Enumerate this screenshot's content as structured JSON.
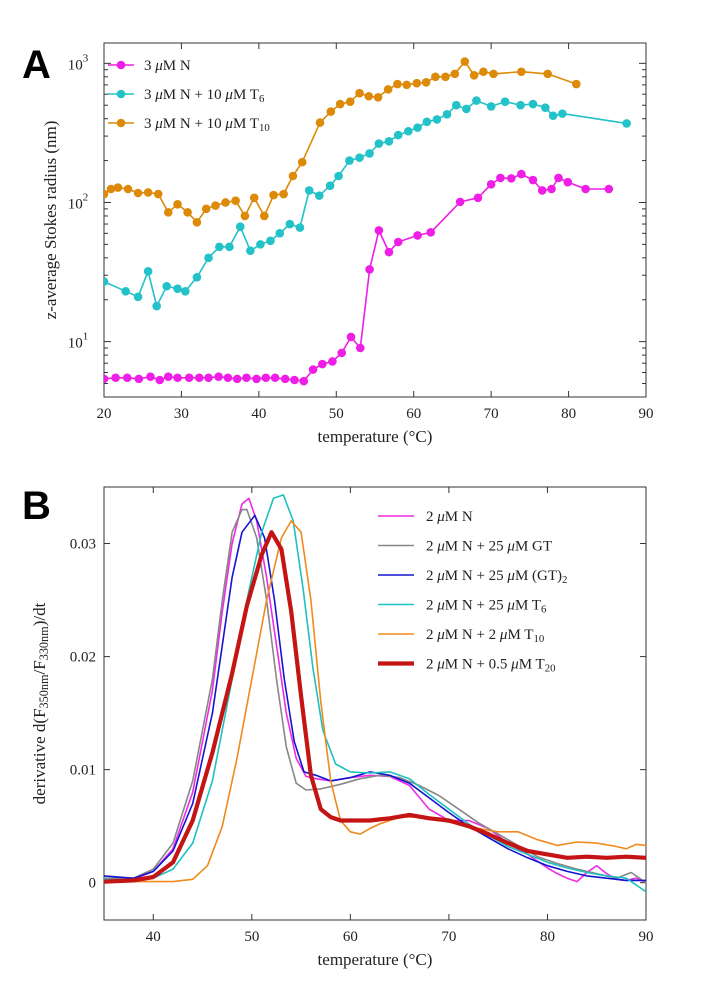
{
  "chart_data": [
    {
      "panel": "A",
      "type": "line",
      "xlabel": "temperature (°C)",
      "ylabel": "z-average Stokes radius (nm)",
      "xlim": [
        20,
        90
      ],
      "ylim": [
        4,
        1400
      ],
      "yscale": "log",
      "grid": false,
      "legend_position": "top-left",
      "xticks": [
        "20",
        "30",
        "40",
        "50",
        "60",
        "70",
        "80",
        "90"
      ],
      "yticks": [
        {
          "value": 10,
          "base": "10",
          "exp": "1"
        },
        {
          "value": 100,
          "base": "10",
          "exp": "2"
        },
        {
          "value": 1000,
          "base": "10",
          "exp": "3"
        }
      ],
      "series": [
        {
          "name": "3 μM N",
          "legend_parts": [
            {
              "t": "3 "
            },
            {
              "t": "μ",
              "it": true
            },
            {
              "t": "M N"
            }
          ],
          "color": "#ee1ee6",
          "x": [
            20,
            21.5,
            23,
            24.5,
            26,
            27.2,
            28.3,
            29.5,
            31,
            32.3,
            33.5,
            34.8,
            36,
            37.2,
            38.4,
            39.7,
            40.9,
            42.1,
            43.4,
            44.6,
            45.8,
            47,
            48.2,
            49.5,
            50.7,
            51.9,
            53.1,
            54.3,
            55.5,
            56.8,
            58,
            60.5,
            62.2,
            66,
            68.3,
            70,
            71.2,
            72.6,
            73.9,
            75.4,
            76.6,
            77.8,
            78.7,
            79.9,
            82.2,
            85.2
          ],
          "y": [
            5.4,
            5.5,
            5.5,
            5.4,
            5.6,
            5.3,
            5.6,
            5.5,
            5.5,
            5.5,
            5.5,
            5.6,
            5.5,
            5.4,
            5.5,
            5.4,
            5.5,
            5.5,
            5.4,
            5.3,
            5.2,
            6.3,
            6.9,
            7.2,
            8.3,
            10.8,
            9,
            33,
            63,
            44,
            52,
            58,
            61,
            101,
            108,
            135,
            150,
            149,
            160,
            145,
            122,
            125,
            150,
            140,
            125,
            125
          ]
        },
        {
          "name": "3 μM N + 10 μM T6",
          "legend_parts": [
            {
              "t": "3 "
            },
            {
              "t": "μ",
              "it": true
            },
            {
              "t": "M N + 10 "
            },
            {
              "t": "μ",
              "it": true
            },
            {
              "t": "M T"
            },
            {
              "t": "6",
              "sub": true
            }
          ],
          "color": "#22c2c8",
          "x": [
            20,
            22.8,
            24.4,
            25.7,
            26.8,
            28.1,
            29.5,
            30.5,
            32,
            33.5,
            34.9,
            36.2,
            37.6,
            38.9,
            40.2,
            41.5,
            42.7,
            44,
            45.3,
            46.5,
            47.8,
            49.2,
            50.3,
            51.7,
            53,
            54.3,
            55.5,
            56.8,
            58,
            59.3,
            60.5,
            61.7,
            63,
            64.3,
            65.5,
            66.8,
            68.1,
            70,
            71.8,
            73.8,
            75.4,
            77,
            78,
            79.2,
            87.5
          ],
          "y": [
            27,
            23,
            21,
            32,
            18,
            25,
            24,
            23,
            29,
            40,
            48,
            48,
            67,
            45,
            50,
            53,
            60,
            70,
            66,
            122,
            112,
            132,
            155,
            200,
            210,
            225,
            265,
            275,
            305,
            325,
            345,
            380,
            395,
            430,
            500,
            470,
            540,
            490,
            530,
            500,
            510,
            480,
            420,
            435,
            370
          ]
        },
        {
          "name": "3 μM N + 10 μM T10",
          "legend_parts": [
            {
              "t": "3 "
            },
            {
              "t": "μ",
              "it": true
            },
            {
              "t": "M N + 10 "
            },
            {
              "t": "μ",
              "it": true
            },
            {
              "t": "M T"
            },
            {
              "t": "10",
              "sub": true
            }
          ],
          "color": "#dc8a08",
          "x": [
            20,
            20.9,
            21.8,
            23.1,
            24.4,
            25.7,
            27,
            28.3,
            29.5,
            30.8,
            32,
            33.2,
            34.4,
            35.7,
            37,
            38.2,
            39.4,
            40.7,
            41.9,
            43.2,
            44.4,
            45.6,
            47.9,
            49.3,
            50.5,
            51.8,
            53,
            54.2,
            55.4,
            56.7,
            57.9,
            59.1,
            60.4,
            61.6,
            62.8,
            64.1,
            65.3,
            66.6,
            67.8,
            69,
            70.3,
            73.9,
            77.3,
            81
          ],
          "y": [
            115,
            125,
            128,
            125,
            117,
            118,
            115,
            85,
            97,
            85,
            72,
            90,
            95,
            100,
            103,
            80,
            108,
            80,
            113,
            115,
            155,
            195,
            375,
            450,
            510,
            530,
            610,
            580,
            570,
            650,
            710,
            700,
            720,
            730,
            800,
            800,
            840,
            1030,
            820,
            870,
            840,
            870,
            840,
            710
          ]
        }
      ]
    },
    {
      "panel": "B",
      "type": "line",
      "xlabel": "temperature (°C)",
      "ylabel_parts": [
        {
          "t": "derivative d(F"
        },
        {
          "t": "350nm",
          "sub": true
        },
        {
          "t": "/F"
        },
        {
          "t": "330nm",
          "sub": true
        },
        {
          "t": ")/dt"
        }
      ],
      "xlim": [
        35,
        90
      ],
      "ylim": [
        -0.0033,
        0.035
      ],
      "grid": false,
      "legend_position": "top-right",
      "xticks": [
        "40",
        "50",
        "60",
        "70",
        "80",
        "90"
      ],
      "yticks": [
        "0",
        "0.01",
        "0.02",
        "0.03"
      ],
      "series": [
        {
          "name": "2 μM N",
          "legend_parts": [
            {
              "t": "2 "
            },
            {
              "t": "μ",
              "it": true
            },
            {
              "t": "M N"
            }
          ],
          "color": "#ee2be6",
          "width": 1.6,
          "x": [
            35,
            38,
            40,
            42,
            44,
            46,
            47,
            48,
            49,
            49.7,
            50.5,
            51.5,
            52.5,
            53.5,
            54.5,
            55.5,
            56.5,
            58,
            60,
            62,
            64,
            66,
            68,
            70,
            72,
            74,
            76,
            78,
            80,
            81,
            82,
            83,
            84,
            85,
            86,
            87,
            88,
            89,
            90
          ],
          "y": [
            0.0004,
            0.0003,
            0.001,
            0.003,
            0.008,
            0.017,
            0.024,
            0.03,
            0.0335,
            0.034,
            0.032,
            0.027,
            0.021,
            0.015,
            0.011,
            0.0094,
            0.0092,
            0.009,
            0.0093,
            0.0095,
            0.0094,
            0.0086,
            0.0065,
            0.0055,
            0.0055,
            0.0048,
            0.0035,
            0.0025,
            0.0013,
            0.0008,
            0.0004,
            0.0001,
            0.0009,
            0.0015,
            0.0008,
            0.0003,
            0.0002,
            0.0004,
            0.0
          ]
        },
        {
          "name": "2 μM N + 25 μM GT",
          "legend_parts": [
            {
              "t": "2 "
            },
            {
              "t": "μ",
              "it": true
            },
            {
              "t": "M N + 25 "
            },
            {
              "t": "μ",
              "it": true
            },
            {
              "t": "M GT"
            }
          ],
          "color": "#888888",
          "width": 1.6,
          "x": [
            35,
            38,
            40,
            42,
            44,
            46,
            47,
            48,
            49,
            49.5,
            50.5,
            51.5,
            52.5,
            53.5,
            54.5,
            55.5,
            57,
            59,
            61,
            63,
            65,
            67,
            69,
            71,
            73,
            75,
            77,
            79,
            81,
            83,
            85,
            87,
            88.5,
            90
          ],
          "y": [
            0.0004,
            0.0004,
            0.0012,
            0.0035,
            0.009,
            0.018,
            0.025,
            0.031,
            0.033,
            0.033,
            0.0305,
            0.025,
            0.018,
            0.012,
            0.0088,
            0.0082,
            0.0083,
            0.0087,
            0.0092,
            0.0095,
            0.0093,
            0.0086,
            0.0077,
            0.0065,
            0.0053,
            0.0043,
            0.0033,
            0.0023,
            0.0017,
            0.0012,
            0.0008,
            0.0004,
            0.0009,
            0.0
          ]
        },
        {
          "name": "2 μM N + 25 μM (GT)2",
          "legend_parts": [
            {
              "t": "2 "
            },
            {
              "t": "μ",
              "it": true
            },
            {
              "t": "M N + 25 "
            },
            {
              "t": "μ",
              "it": true
            },
            {
              "t": "M (GT)"
            },
            {
              "t": "2",
              "sub": true
            }
          ],
          "color": "#1414d2",
          "width": 1.6,
          "x": [
            35,
            38,
            40,
            42,
            44,
            46,
            47,
            48,
            49,
            50.3,
            51.3,
            52.3,
            53.3,
            54.3,
            55.3,
            56.5,
            58,
            60,
            62,
            64,
            66,
            68,
            70,
            72,
            74,
            76,
            78,
            80,
            82,
            84,
            86,
            88,
            90
          ],
          "y": [
            0.0006,
            0.0004,
            0.001,
            0.0028,
            0.007,
            0.015,
            0.021,
            0.027,
            0.031,
            0.0325,
            0.0305,
            0.025,
            0.018,
            0.0125,
            0.0098,
            0.0095,
            0.009,
            0.0093,
            0.0098,
            0.0095,
            0.0088,
            0.0075,
            0.0062,
            0.005,
            0.004,
            0.003,
            0.0022,
            0.0015,
            0.001,
            0.0006,
            0.0004,
            0.0002,
            0.0002
          ]
        },
        {
          "name": "2 μM N + 25 μM T6",
          "legend_parts": [
            {
              "t": "2 "
            },
            {
              "t": "μ",
              "it": true
            },
            {
              "t": "M N + 25 "
            },
            {
              "t": "μ",
              "it": true
            },
            {
              "t": "M T"
            },
            {
              "t": "6",
              "sub": true
            }
          ],
          "color": "#1ec0c0",
          "width": 1.6,
          "x": [
            35,
            38,
            40,
            42,
            44,
            46,
            48,
            49.5,
            51,
            52.2,
            53.2,
            54.2,
            55.2,
            56.2,
            57.2,
            58.5,
            60,
            62,
            64,
            66,
            68,
            70,
            72,
            74,
            76,
            78,
            80,
            82,
            84,
            86,
            88,
            90
          ],
          "y": [
            0.0003,
            0.0002,
            0.0004,
            0.0012,
            0.0035,
            0.009,
            0.018,
            0.025,
            0.031,
            0.034,
            0.0343,
            0.032,
            0.026,
            0.019,
            0.0135,
            0.0105,
            0.0098,
            0.0097,
            0.0098,
            0.0092,
            0.0078,
            0.0065,
            0.0052,
            0.0042,
            0.0032,
            0.0025,
            0.0018,
            0.0013,
            0.0009,
            0.0006,
            0.0004,
            -0.0008
          ]
        },
        {
          "name": "2 μM N + 2 μM T10",
          "legend_parts": [
            {
              "t": "2 "
            },
            {
              "t": "μ",
              "it": true
            },
            {
              "t": "M N + 2 "
            },
            {
              "t": "μ",
              "it": true
            },
            {
              "t": "M T"
            },
            {
              "t": "10",
              "sub": true
            }
          ],
          "color": "#f08a1c",
          "width": 1.6,
          "x": [
            35,
            38,
            40,
            42,
            44,
            45.5,
            47,
            48.5,
            50,
            51.5,
            53,
            54,
            55,
            56,
            57,
            58,
            59,
            60,
            61,
            62,
            63,
            65,
            67,
            69,
            71,
            73,
            75,
            77,
            79,
            81,
            83,
            85,
            87,
            88,
            89,
            90
          ],
          "y": [
            0.0001,
            0.0001,
            0.0001,
            0.0001,
            0.0003,
            0.0015,
            0.005,
            0.011,
            0.018,
            0.025,
            0.0305,
            0.032,
            0.031,
            0.025,
            0.016,
            0.009,
            0.0055,
            0.0045,
            0.0043,
            0.0048,
            0.0052,
            0.0058,
            0.0058,
            0.0055,
            0.0052,
            0.0048,
            0.0045,
            0.0045,
            0.0038,
            0.0033,
            0.0036,
            0.0035,
            0.0032,
            0.003,
            0.0034,
            0.0033
          ]
        },
        {
          "name": "2 μM N + 0.5 μM T20",
          "legend_parts": [
            {
              "t": "2 "
            },
            {
              "t": "μ",
              "it": true
            },
            {
              "t": "M N + 0.5 "
            },
            {
              "t": "μ",
              "it": true
            },
            {
              "t": "M T"
            },
            {
              "t": "20",
              "sub": true
            }
          ],
          "color": "#c41414",
          "width": 4.2,
          "x": [
            35,
            38,
            40,
            42,
            44,
            46,
            48,
            49.5,
            51,
            52,
            53,
            54,
            55,
            56,
            57,
            58,
            59,
            60,
            62,
            64,
            66,
            68,
            70,
            72,
            74,
            76,
            78,
            80,
            82,
            84,
            86,
            88,
            90
          ],
          "y": [
            0.0001,
            0.0002,
            0.0005,
            0.0018,
            0.0055,
            0.0115,
            0.0185,
            0.0245,
            0.029,
            0.031,
            0.0295,
            0.024,
            0.0165,
            0.0095,
            0.0065,
            0.0058,
            0.0055,
            0.0055,
            0.0055,
            0.0057,
            0.006,
            0.0057,
            0.0055,
            0.005,
            0.0043,
            0.0035,
            0.0028,
            0.0025,
            0.0022,
            0.0023,
            0.0022,
            0.0023,
            0.0022
          ]
        }
      ]
    }
  ]
}
